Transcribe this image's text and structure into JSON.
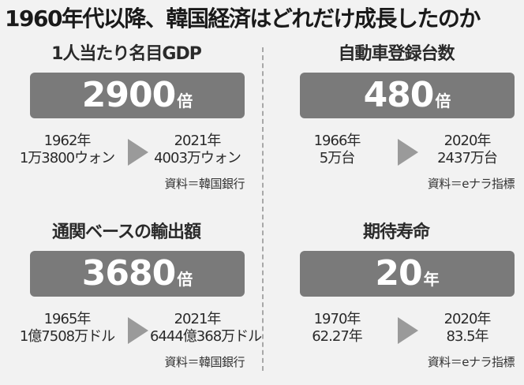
{
  "title": "1960年代以降、韓国経済はどれだけ成長したのか",
  "panels": [
    {
      "heading": "1人当たり名目GDP",
      "value": "2900",
      "unit": "倍",
      "from_line1": "1962年",
      "from_line2": "1万3800ウォン",
      "to_line1": "2021年",
      "to_line2": "4003万ウォン",
      "source": "資料＝韓国銀行"
    },
    {
      "heading": "自動車登録台数",
      "value": "480",
      "unit": "倍",
      "from_line1": "1966年",
      "from_line2": "5万台",
      "to_line1": "2020年",
      "to_line2": "2437万台",
      "source": "資料＝eナラ指標"
    },
    {
      "heading": "通関ベースの輸出額",
      "value": "3680",
      "unit": "倍",
      "from_line1": "1965年",
      "from_line2": "1億7508万ドル",
      "to_line1": "2021年",
      "to_line2": "6444億368万ドル",
      "source": "資料＝韓国銀行"
    },
    {
      "heading": "期待寿命",
      "value": "20",
      "unit": "年",
      "from_line1": "1970年",
      "from_line2": "62.27年",
      "to_line1": "2020年",
      "to_line2": "83.5年",
      "source": "資料＝eナラ指標"
    }
  ],
  "colors": {
    "background": "#f2f2f2",
    "value_box": "#7a7a7a",
    "arrow": "#9a9a9a"
  }
}
